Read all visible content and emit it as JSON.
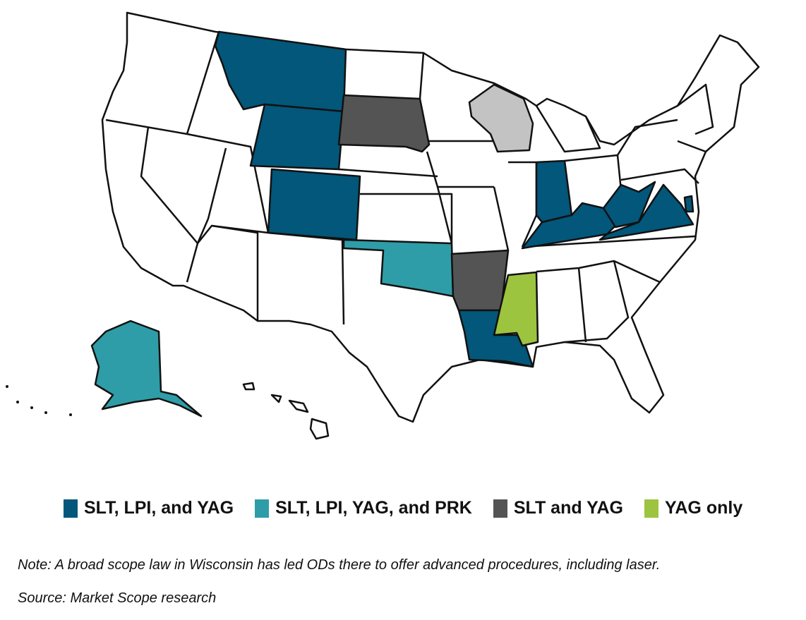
{
  "legend": [
    {
      "label": "SLT, LPI, and YAG",
      "color": "#02577A"
    },
    {
      "label": "SLT, LPI, YAG, and PRK",
      "color": "#2E9DA8"
    },
    {
      "label": "SLT and YAG",
      "color": "#545454"
    },
    {
      "label": "YAG only",
      "color": "#9DC43F"
    }
  ],
  "special_color": "#C3C3C3",
  "default_color": "#FFFFFF",
  "state_categories": {
    "Montana": 0,
    "Wyoming": 0,
    "Colorado": 0,
    "Indiana": 0,
    "Kentucky": 0,
    "West Virginia": 0,
    "Virginia": 0,
    "Louisiana": 0,
    "Delaware": 0,
    "Oklahoma": 1,
    "Alaska": 1,
    "South Dakota": 2,
    "Arkansas": 2,
    "Mississippi": 3,
    "Wisconsin": "special"
  },
  "note": "Note: A broad scope law in Wisconsin has led ODs there to offer advanced procedures, including laser.",
  "source": "Source: Market Scope research"
}
